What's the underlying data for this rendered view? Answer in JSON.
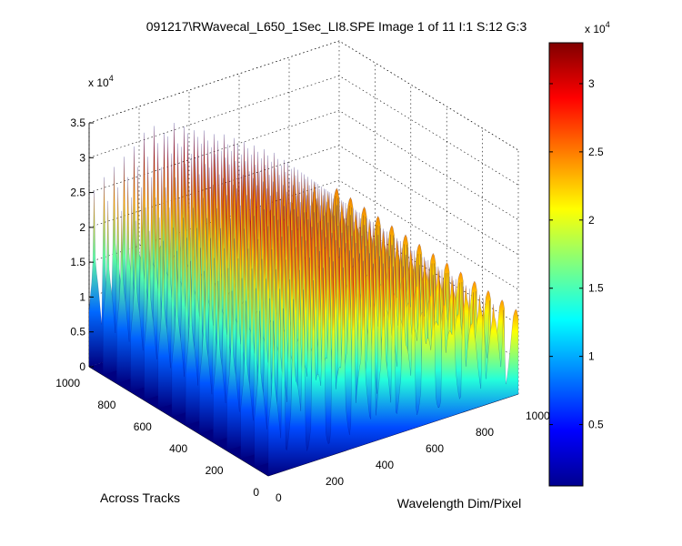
{
  "chart_data": {
    "type": "surface",
    "title": "091217\\RWavecal_L650_1Sec_LI8.SPE  Image 1 of 11  I:1  S:12  G:3",
    "xlabel": "Wavelength Dim/Pixel",
    "ylabel": "Across Tracks",
    "zlabel": "",
    "z_exponent_label": "x 10",
    "z_exponent_power": "4",
    "xlim": [
      0,
      1000
    ],
    "ylim": [
      0,
      1000
    ],
    "zlim": [
      0,
      35000
    ],
    "x_ticks": [
      "0",
      "200",
      "400",
      "600",
      "800",
      "1000"
    ],
    "y_ticks": [
      "0",
      "200",
      "400",
      "600",
      "800",
      "1000"
    ],
    "z_ticks": [
      "0",
      "0.5",
      "1",
      "1.5",
      "2",
      "2.5",
      "3",
      "3.5"
    ],
    "grid": true,
    "surface": {
      "x_range": [
        0,
        1000
      ],
      "y_active_range": [
        0,
        1000
      ],
      "x_active_range": [
        0,
        1000
      ],
      "baseline": 0,
      "peaks": [
        {
          "x": 20,
          "z": 25000
        },
        {
          "x": 60,
          "z": 26500
        },
        {
          "x": 100,
          "z": 27500
        },
        {
          "x": 140,
          "z": 28500
        },
        {
          "x": 180,
          "z": 29500
        },
        {
          "x": 220,
          "z": 31000
        },
        {
          "x": 260,
          "z": 31500
        },
        {
          "x": 300,
          "z": 30000
        },
        {
          "x": 340,
          "z": 31000
        },
        {
          "x": 380,
          "z": 30000
        },
        {
          "x": 420,
          "z": 29000
        },
        {
          "x": 460,
          "z": 28500
        },
        {
          "x": 500,
          "z": 27500
        },
        {
          "x": 540,
          "z": 27000
        },
        {
          "x": 580,
          "z": 26000
        },
        {
          "x": 620,
          "z": 25000
        },
        {
          "x": 660,
          "z": 24000
        },
        {
          "x": 700,
          "z": 23000
        },
        {
          "x": 740,
          "z": 22000
        },
        {
          "x": 780,
          "z": 20500
        },
        {
          "x": 820,
          "z": 19000
        },
        {
          "x": 860,
          "z": 17500
        },
        {
          "x": 900,
          "z": 16000
        },
        {
          "x": 940,
          "z": 14500
        },
        {
          "x": 980,
          "z": 13000
        }
      ]
    },
    "colorbar": {
      "colormap": "jet",
      "range": [
        500,
        33000
      ],
      "ticks": [
        "0.5",
        "1",
        "1.5",
        "2",
        "2.5",
        "3"
      ],
      "exponent_label": "x 10",
      "exponent_power": "4"
    }
  }
}
